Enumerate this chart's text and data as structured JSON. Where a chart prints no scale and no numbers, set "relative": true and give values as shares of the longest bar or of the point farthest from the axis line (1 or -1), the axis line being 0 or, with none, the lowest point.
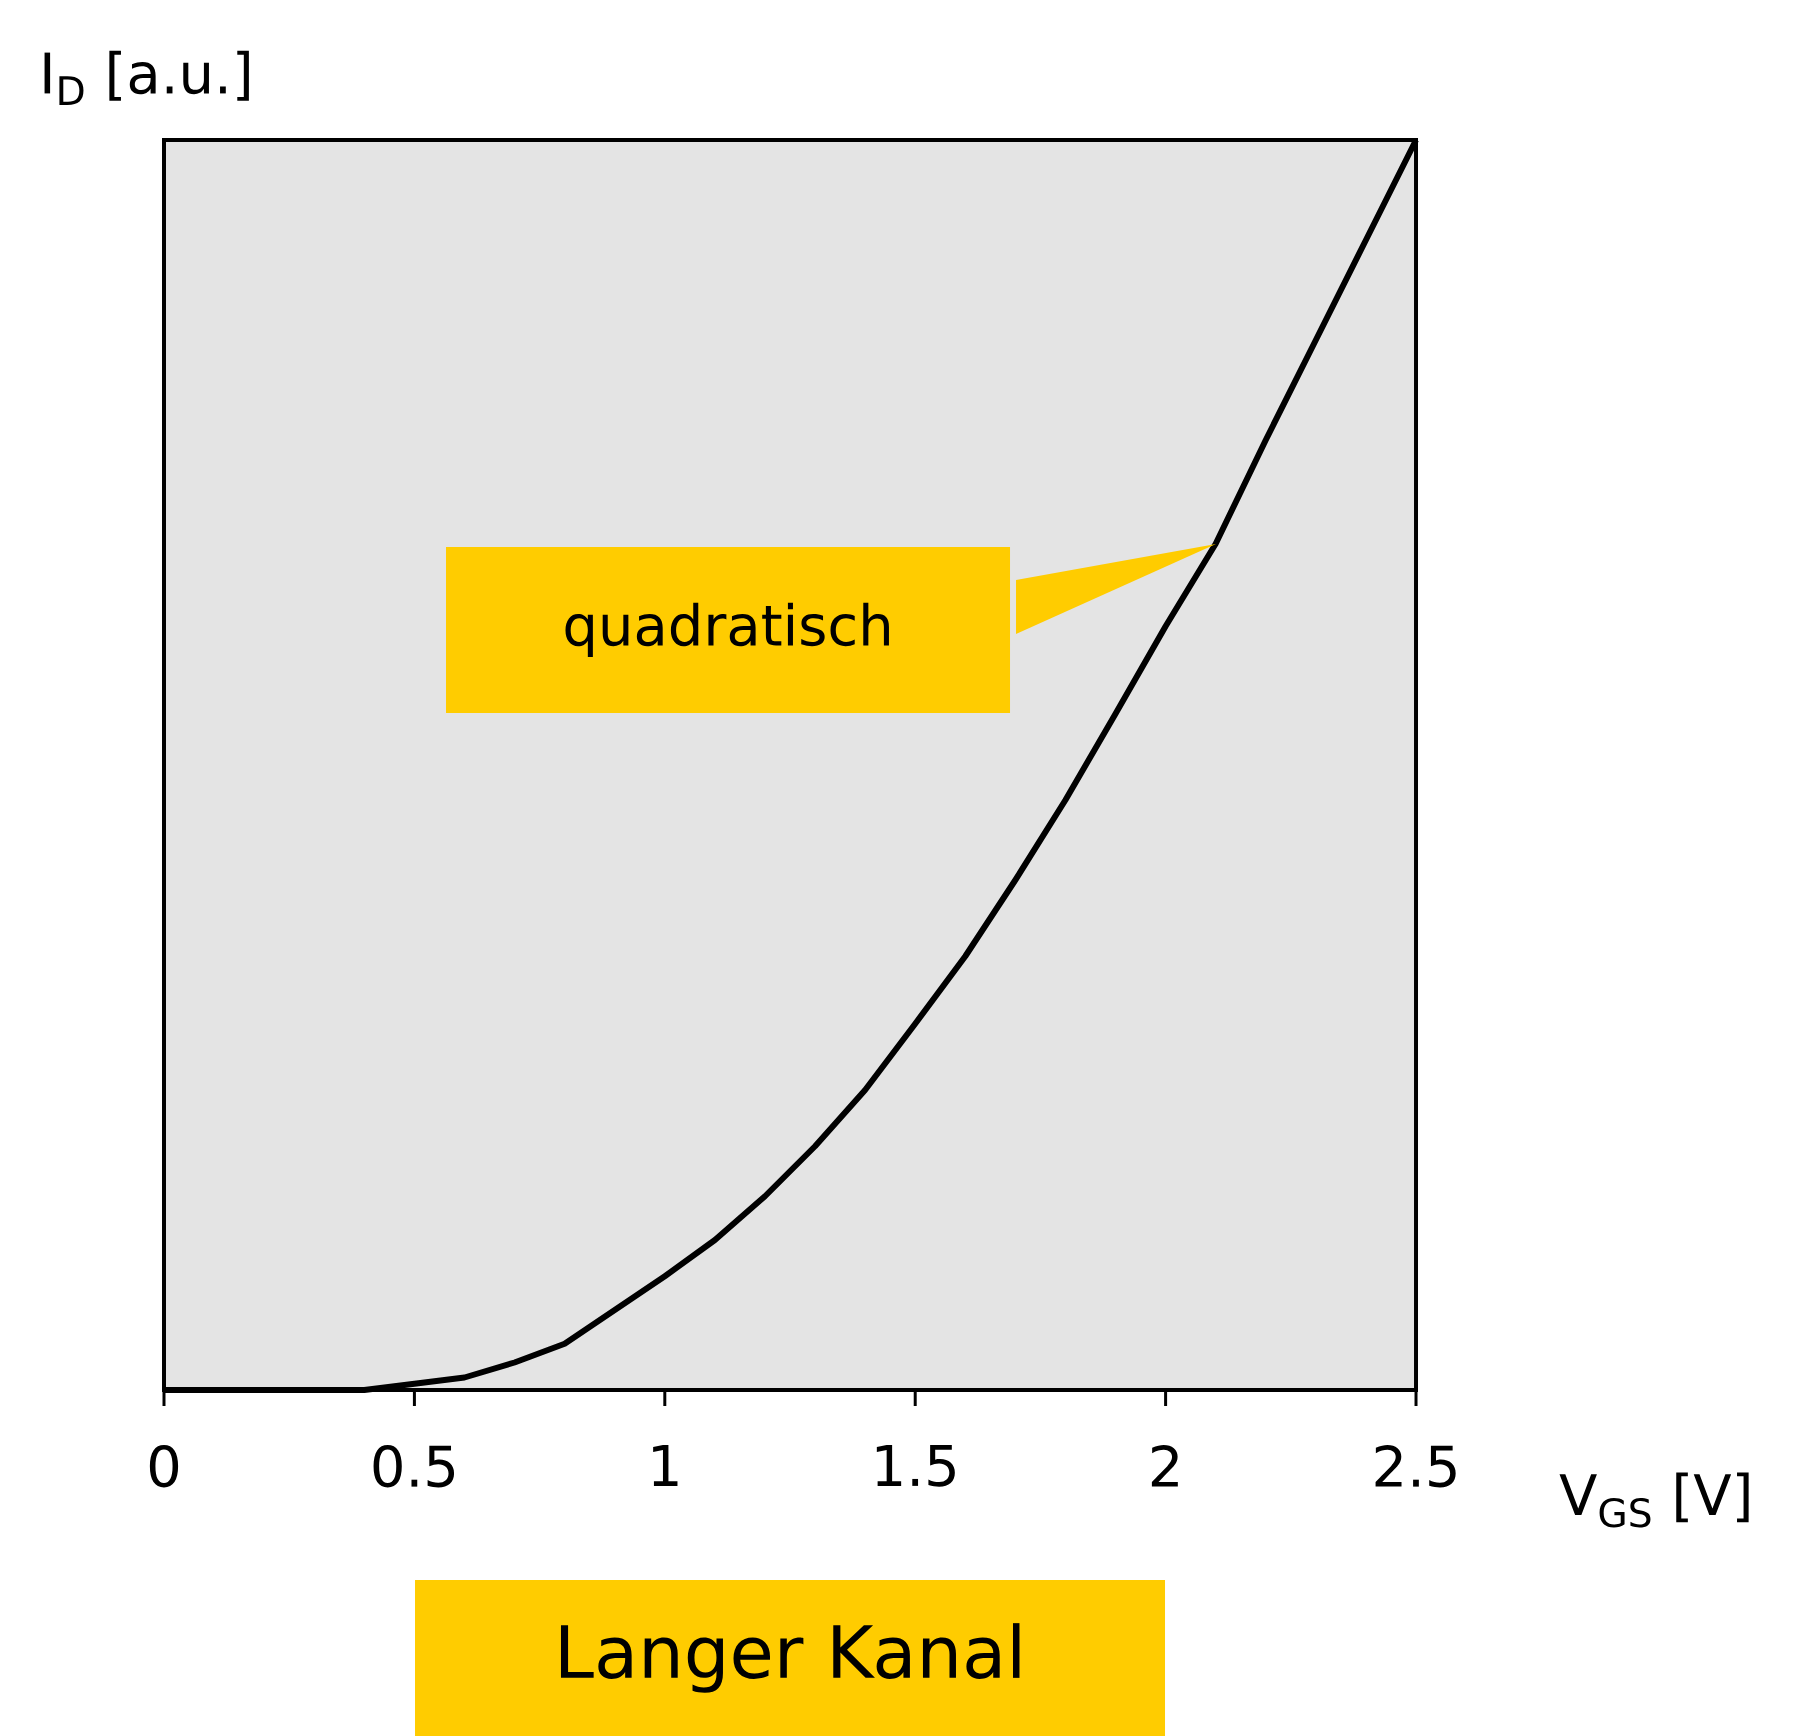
{
  "chart_data": {
    "type": "line",
    "relative": true,
    "xlabel": "V$_{GS}$ [V]",
    "ylabel": "I$_{D}$ [a.u.]",
    "x": [
      0,
      0.4,
      0.5,
      0.6,
      0.7,
      0.8,
      0.9,
      1.0,
      1.1,
      1.2,
      1.3,
      1.4,
      1.5,
      1.6,
      1.7,
      1.8,
      1.9,
      2.0,
      2.1,
      2.2,
      2.3,
      2.4,
      2.5
    ],
    "series": [
      {
        "color": "#000000",
        "values": [
          0,
          0,
          0.005,
          0.01,
          0.022,
          0.037,
          0.064,
          0.091,
          0.12,
          0.155,
          0.195,
          0.24,
          0.293,
          0.347,
          0.408,
          0.472,
          0.541,
          0.611,
          0.677,
          0.76,
          0.84,
          0.92,
          1
        ]
      }
    ],
    "xlim": [
      0,
      2.5
    ],
    "xticks": [
      0,
      0.5,
      1,
      1.5,
      2,
      2.5
    ],
    "annotations": [
      "quadratisch",
      "Langer Kanal"
    ],
    "grid": false,
    "marker": "none",
    "line_style": "solid"
  }
}
